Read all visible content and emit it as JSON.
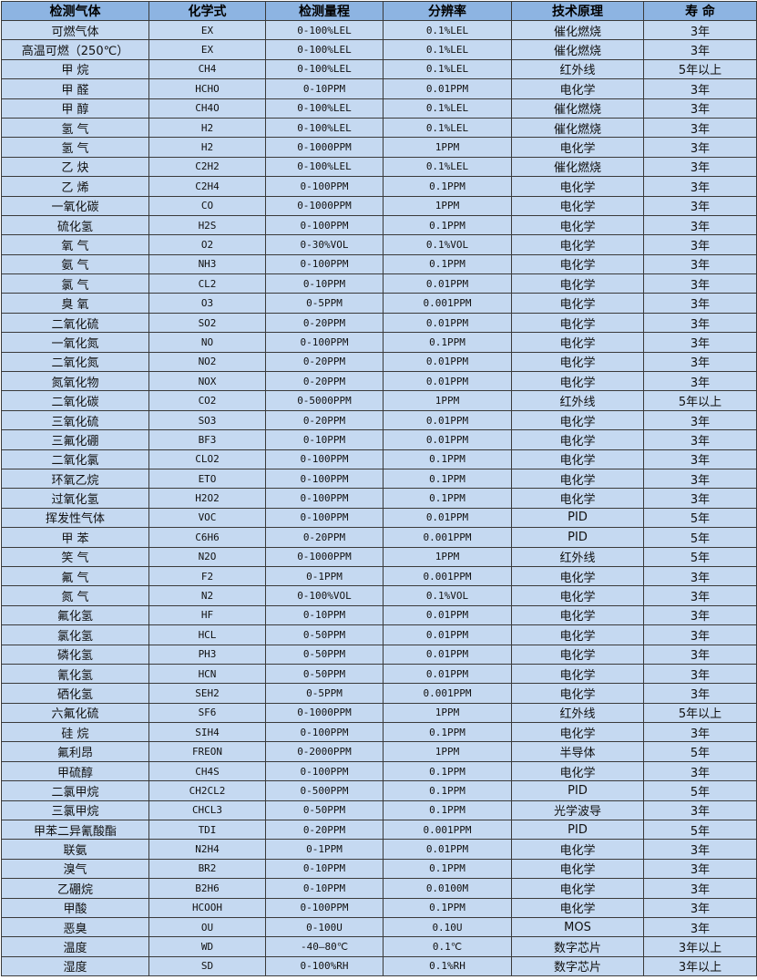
{
  "headers": [
    "检测气体",
    "化学式",
    "检测量程",
    "分辨率",
    "技术原理",
    "寿 命"
  ],
  "rows": [
    [
      "可燃气体",
      "EX",
      "0-100%LEL",
      "0.1%LEL",
      "催化燃烧",
      "3年"
    ],
    [
      "高温可燃（250℃）",
      "EX",
      "0-100%LEL",
      "0.1%LEL",
      "催化燃烧",
      "3年"
    ],
    [
      "甲 烷",
      "CH4",
      "0-100%LEL",
      "0.1%LEL",
      "红外线",
      "5年以上"
    ],
    [
      "甲 醛",
      "HCHO",
      "0-10PPM",
      "0.01PPM",
      "电化学",
      "3年"
    ],
    [
      "甲 醇",
      "CH4O",
      "0-100%LEL",
      "0.1%LEL",
      "催化燃烧",
      "3年"
    ],
    [
      "氢 气",
      "H2",
      "0-100%LEL",
      "0.1%LEL",
      "催化燃烧",
      "3年"
    ],
    [
      "氢 气",
      "H2",
      "0-1000PPM",
      "1PPM",
      "电化学",
      "3年"
    ],
    [
      "乙 炔",
      "C2H2",
      "0-100%LEL",
      "0.1%LEL",
      "催化燃烧",
      "3年"
    ],
    [
      "乙 烯",
      "C2H4",
      "0-100PPM",
      "0.1PPM",
      "电化学",
      "3年"
    ],
    [
      "一氧化碳",
      "CO",
      "0-1000PPM",
      "1PPM",
      "电化学",
      "3年"
    ],
    [
      "硫化氢",
      "H2S",
      "0-100PPM",
      "0.1PPM",
      "电化学",
      "3年"
    ],
    [
      "氧 气",
      "O2",
      "0-30%VOL",
      "0.1%VOL",
      "电化学",
      "3年"
    ],
    [
      "氨 气",
      "NH3",
      "0-100PPM",
      "0.1PPM",
      "电化学",
      "3年"
    ],
    [
      "氯 气",
      "CL2",
      "0-10PPM",
      "0.01PPM",
      "电化学",
      "3年"
    ],
    [
      "臭 氧",
      "O3",
      "0-5PPM",
      "0.001PPM",
      "电化学",
      "3年"
    ],
    [
      "二氧化硫",
      "SO2",
      "0-20PPM",
      "0.01PPM",
      "电化学",
      "3年"
    ],
    [
      "一氧化氮",
      "NO",
      "0-100PPM",
      "0.1PPM",
      "电化学",
      "3年"
    ],
    [
      "二氧化氮",
      "NO2",
      "0-20PPM",
      "0.01PPM",
      "电化学",
      "3年"
    ],
    [
      "氮氧化物",
      "NOX",
      "0-20PPM",
      "0.01PPM",
      "电化学",
      "3年"
    ],
    [
      "二氧化碳",
      "CO2",
      "0-5000PPM",
      "1PPM",
      "红外线",
      "5年以上"
    ],
    [
      "三氧化硫",
      "SO3",
      "0-20PPM",
      "0.01PPM",
      "电化学",
      "3年"
    ],
    [
      "三氟化硼",
      "BF3",
      "0-10PPM",
      "0.01PPM",
      "电化学",
      "3年"
    ],
    [
      "二氧化氯",
      "CLO2",
      "0-100PPM",
      "0.1PPM",
      "电化学",
      "3年"
    ],
    [
      "环氧乙烷",
      "ETO",
      "0-100PPM",
      "0.1PPM",
      "电化学",
      "3年"
    ],
    [
      "过氧化氢",
      "H2O2",
      "0-100PPM",
      "0.1PPM",
      "电化学",
      "3年"
    ],
    [
      "挥发性气体",
      "VOC",
      "0-100PPM",
      "0.01PPM",
      "PID",
      "5年"
    ],
    [
      "甲 苯",
      "C6H6",
      "0-20PPM",
      "0.001PPM",
      "PID",
      "5年"
    ],
    [
      "笑 气",
      "N2O",
      "0-1000PPM",
      "1PPM",
      "红外线",
      "5年"
    ],
    [
      "氟 气",
      "F2",
      "0-1PPM",
      "0.001PPM",
      "电化学",
      "3年"
    ],
    [
      "氮 气",
      "N2",
      "0-100%VOL",
      "0.1%VOL",
      "电化学",
      "3年"
    ],
    [
      "氟化氢",
      "HF",
      "0-10PPM",
      "0.01PPM",
      "电化学",
      "3年"
    ],
    [
      "氯化氢",
      "HCL",
      "0-50PPM",
      "0.01PPM",
      "电化学",
      "3年"
    ],
    [
      "磷化氢",
      "PH3",
      "0-50PPM",
      "0.01PPM",
      "电化学",
      "3年"
    ],
    [
      "氰化氢",
      "HCN",
      "0-50PPM",
      "0.01PPM",
      "电化学",
      "3年"
    ],
    [
      "硒化氢",
      "SEH2",
      "0-5PPM",
      "0.001PPM",
      "电化学",
      "3年"
    ],
    [
      "六氟化硫",
      "SF6",
      "0-1000PPM",
      "1PPM",
      "红外线",
      "5年以上"
    ],
    [
      "硅 烷",
      "SIH4",
      "0-100PPM",
      "0.1PPM",
      "电化学",
      "3年"
    ],
    [
      "氟利昂",
      "FREON",
      "0-2000PPM",
      "1PPM",
      "半导体",
      "5年"
    ],
    [
      "甲硫醇",
      "CH4S",
      "0-100PPM",
      "0.1PPM",
      "电化学",
      "3年"
    ],
    [
      "二氯甲烷",
      "CH2CL2",
      "0-500PPM",
      "0.1PPM",
      "PID",
      "5年"
    ],
    [
      "三氯甲烷",
      "CHCL3",
      "0-50PPM",
      "0.1PPM",
      "光学波导",
      "3年"
    ],
    [
      "甲苯二异氰酸酯",
      "TDI",
      "0-20PPM",
      "0.001PPM",
      "PID",
      "5年"
    ],
    [
      "联氨",
      "N2H4",
      "0-1PPM",
      "0.01PPM",
      "电化学",
      "3年"
    ],
    [
      "溴气",
      "BR2",
      "0-10PPM",
      "0.1PPM",
      "电化学",
      "3年"
    ],
    [
      "乙硼烷",
      "B2H6",
      "0-10PPM",
      "0.0100M",
      "电化学",
      "3年"
    ],
    [
      "甲酸",
      "HCOOH",
      "0-100PPM",
      "0.1PPM",
      "电化学",
      "3年"
    ],
    [
      "恶臭",
      "OU",
      "0-100U",
      "0.10U",
      "MOS",
      "3年"
    ],
    [
      "温度",
      "WD",
      "-40—80℃",
      "0.1℃",
      "数字芯片",
      "3年以上"
    ],
    [
      "湿度",
      "SD",
      "0-100%RH",
      "0.1%RH",
      "数字芯片",
      "3年以上"
    ]
  ]
}
